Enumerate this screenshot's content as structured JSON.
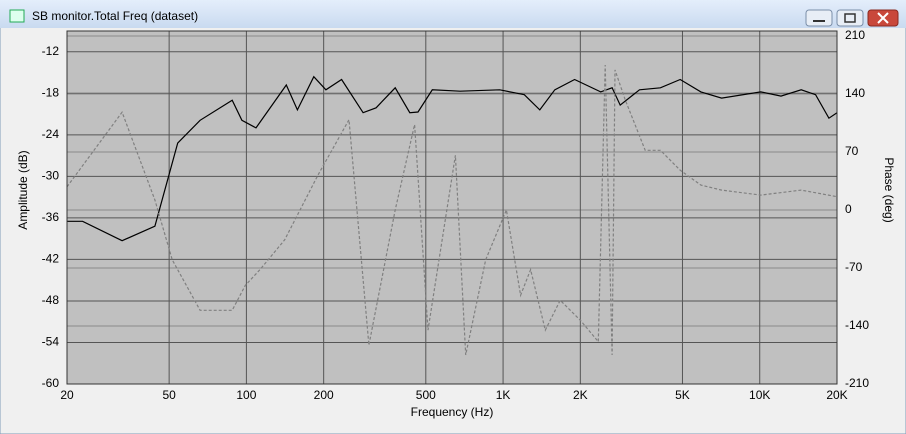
{
  "window": {
    "title": "SB  monitor.Total Freq (dataset)"
  },
  "chart_data": {
    "type": "line",
    "xlabel": "Frequency (Hz)",
    "ylabel": "Amplitude (dB)",
    "y2label": "Phase (deg)",
    "xscale": "log",
    "grid": true,
    "xlim": [
      20,
      20000
    ],
    "xticks": [
      20,
      50,
      100,
      200,
      500,
      {
        "value": 1000,
        "label": "1K"
      },
      {
        "value": 2000,
        "label": "2K"
      },
      {
        "value": 5000,
        "label": "5K"
      },
      {
        "value": 10000,
        "label": "10K"
      },
      {
        "value": 20000,
        "label": "20K"
      }
    ],
    "ylim": [
      -60,
      -9
    ],
    "yticks": [
      -60,
      -54,
      -48,
      -42,
      -36,
      -30,
      -24,
      -18,
      -12
    ],
    "y2lim": [
      -210,
      216
    ],
    "y2ticks": [
      -210,
      -140,
      -70,
      0,
      70,
      140,
      210
    ],
    "series": [
      {
        "name": "Amplitude",
        "color": "#000000",
        "style": "solid",
        "x": [
          20,
          23,
          32.8,
          44,
          54,
          66,
          88,
          96,
          109,
          143,
          158,
          183,
          204,
          235,
          285,
          320,
          380,
          433,
          466,
          530,
          680,
          970,
          1210,
          1390,
          1590,
          1900,
          2400,
          2660,
          2860,
          3400,
          4100,
          4900,
          5900,
          7100,
          10100,
          12100,
          14500,
          16500,
          18600,
          20000
        ],
        "values": [
          -36.5,
          -36.5,
          -39.3,
          -37.2,
          -25.2,
          -21.9,
          -19,
          -21.9,
          -23,
          -16.8,
          -20.4,
          -15.6,
          -17.5,
          -16,
          -20.8,
          -20.1,
          -17.2,
          -20.8,
          -20.7,
          -17.5,
          -17.7,
          -17.5,
          -18.2,
          -20.4,
          -17.5,
          -16,
          -17.8,
          -17.2,
          -19.7,
          -17.5,
          -17.2,
          -16,
          -17.8,
          -18.7,
          -17.8,
          -18.4,
          -17.5,
          -18.2,
          -21.6,
          -20.8
        ]
      },
      {
        "name": "Phase",
        "color": "#808080",
        "style": "dashed",
        "axis": "y2",
        "x": [
          20,
          32.8,
          44,
          51.4,
          66,
          88,
          99,
          113,
          141,
          190,
          251,
          300,
          380,
          452,
          510,
          652,
          715,
          856,
          1030,
          1170,
          1280,
          1460,
          1670,
          2000,
          2350,
          2500,
          2660,
          2730,
          2990,
          3580,
          4100,
          4900,
          5900,
          7100,
          10100,
          14500,
          20000
        ],
        "values": [
          28,
          118,
          12,
          -60,
          -121,
          -121,
          -91,
          -72,
          -36,
          42,
          109,
          -163,
          0,
          103,
          -145,
          66,
          -175,
          -60,
          0,
          -103,
          -72,
          -145,
          -109,
          -133,
          -159,
          175,
          -175,
          169,
          133,
          72,
          72,
          48,
          30,
          24,
          18,
          24,
          16
        ]
      }
    ]
  }
}
